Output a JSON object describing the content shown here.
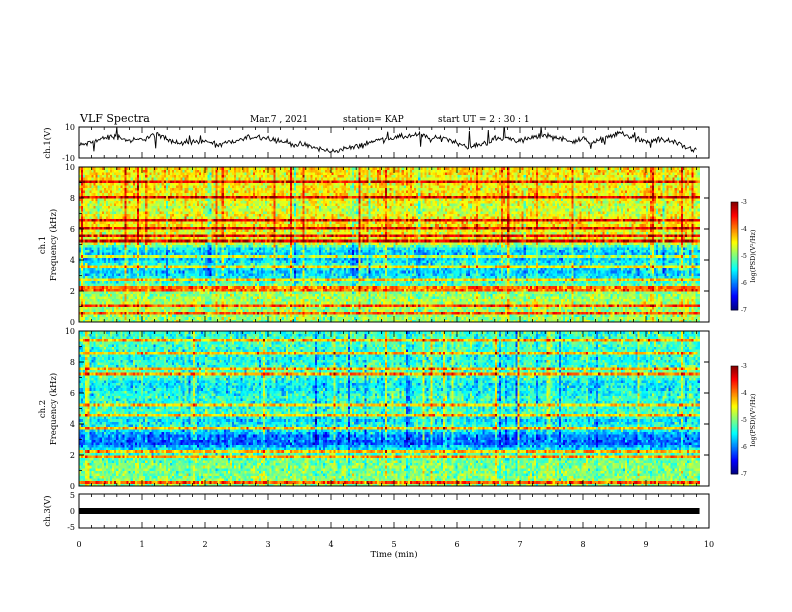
{
  "header": {
    "title": "VLF Spectra",
    "date": "Mar.7 , 2021",
    "station": "station= KAP",
    "start_ut": "start  UT =   2 : 30 : 1"
  },
  "chart_data": [
    {
      "type": "line",
      "panel": "ch1-waveform",
      "ylabel": "ch.1(V)",
      "ylim": [
        -10,
        10
      ],
      "ytick_labels": [
        "10",
        "-10"
      ],
      "x_range_min": [
        0,
        9.85
      ],
      "trace": {
        "x": [
          0,
          0.2,
          0.4,
          0.6,
          0.8,
          1.0,
          1.2,
          1.4,
          1.6,
          1.8,
          2.0,
          2.2,
          2.4,
          2.6,
          2.8,
          3.0,
          3.2,
          3.4,
          3.6,
          3.8,
          4.0,
          4.2,
          4.4,
          4.6,
          4.8,
          5.0,
          5.2,
          5.4,
          5.6,
          5.8,
          6.0,
          6.2,
          6.4,
          6.6,
          6.8,
          7.0,
          7.2,
          7.4,
          7.6,
          7.8,
          8.0,
          8.2,
          8.4,
          8.6,
          8.8,
          9.0,
          9.2,
          9.4,
          9.6,
          9.8
        ],
        "y": [
          -2,
          0,
          3,
          4,
          1,
          2,
          5,
          3,
          -1,
          0,
          1,
          -2,
          0,
          2,
          4,
          3,
          1,
          -1,
          -2,
          -4,
          -6,
          -4,
          -3,
          0,
          2,
          3,
          4,
          5,
          2,
          3,
          0,
          -3,
          -1,
          2,
          3,
          1,
          3,
          5,
          3,
          1,
          2,
          0,
          4,
          6,
          3,
          0,
          2,
          1,
          -3,
          -5
        ]
      }
    },
    {
      "type": "heatmap",
      "panel": "ch1-spectrogram",
      "ylabel_line1": "ch.1",
      "ylabel_line2": "Frequency  (kHz)",
      "ylim": [
        0,
        10
      ],
      "ytick_labels": [
        "0",
        "2",
        "4",
        "6",
        "8",
        "10"
      ],
      "x_range_min": [
        0,
        9.85
      ],
      "value_name": "log(PSD)",
      "value_range": [
        -7,
        -3
      ],
      "colorbar_ticks": [
        "-3",
        "-4",
        "-5",
        "-6",
        "-7"
      ],
      "colorbar_label": "log(PSD)(V²/Hz)",
      "freq_profile": {
        "freq_khz": [
          0.25,
          0.75,
          1.25,
          1.75,
          2.25,
          2.75,
          3.25,
          3.75,
          4.25,
          4.75,
          5.25,
          5.75,
          6.25,
          6.75,
          7.25,
          7.75,
          8.25,
          8.75,
          9.25,
          9.75
        ],
        "log_psd": [
          -4.9,
          -4.9,
          -4.8,
          -4.9,
          -5.0,
          -5.4,
          -5.7,
          -5.4,
          -5.8,
          -5.5,
          -4.4,
          -4.6,
          -4.4,
          -4.5,
          -4.7,
          -4.6,
          -4.4,
          -4.5,
          -4.5,
          -4.4
        ]
      },
      "line_frequencies_khz": [
        0.5,
        1.0,
        2.0,
        2.3,
        2.8,
        3.6,
        4.3,
        5.3,
        5.5,
        6.1,
        6.6,
        8.0,
        9.0
      ]
    },
    {
      "type": "heatmap",
      "panel": "ch2-spectrogram",
      "ylabel_line1": "ch.2",
      "ylabel_line2": "Frequency  (kHz)",
      "ylim": [
        0,
        10
      ],
      "ytick_labels": [
        "0",
        "2",
        "4",
        "6",
        "8",
        "10"
      ],
      "x_range_min": [
        0,
        9.85
      ],
      "value_name": "log(PSD)",
      "value_range": [
        -7,
        -3
      ],
      "colorbar_ticks": [
        "-3",
        "-4",
        "-5",
        "-6",
        "-7"
      ],
      "colorbar_label": "log(PSD)(V²/Hz)",
      "freq_profile": {
        "freq_khz": [
          0.25,
          0.75,
          1.25,
          1.75,
          2.25,
          2.75,
          3.25,
          3.75,
          4.25,
          4.75,
          5.25,
          5.75,
          6.25,
          6.75,
          7.25,
          7.75,
          8.25,
          8.75,
          9.25,
          9.75
        ],
        "log_psd": [
          -4.9,
          -5.0,
          -5.0,
          -5.1,
          -5.3,
          -6.1,
          -6.0,
          -5.3,
          -5.6,
          -5.2,
          -5.4,
          -5.3,
          -5.5,
          -5.5,
          -5.1,
          -5.3,
          -5.4,
          -5.3,
          -5.2,
          -5.3
        ]
      },
      "line_frequencies_khz": [
        0.3,
        1.9,
        2.2,
        3.8,
        4.5,
        5.3,
        7.3,
        7.5,
        8.5,
        9.4
      ]
    },
    {
      "type": "line",
      "panel": "ch3-waveform",
      "ylabel": "ch.3(V)",
      "ylim": [
        -5,
        5
      ],
      "ytick_labels": [
        "5",
        "0",
        "-5"
      ],
      "x_range_min": [
        0,
        9.85
      ],
      "trace": {
        "x": [
          0,
          9.85
        ],
        "y": [
          0,
          0
        ]
      }
    }
  ],
  "xaxis": {
    "label": "Time  (min)",
    "range": [
      0,
      10
    ],
    "tick_labels": [
      "0",
      "1",
      "2",
      "3",
      "4",
      "5",
      "6",
      "7",
      "8",
      "9",
      "10"
    ]
  }
}
